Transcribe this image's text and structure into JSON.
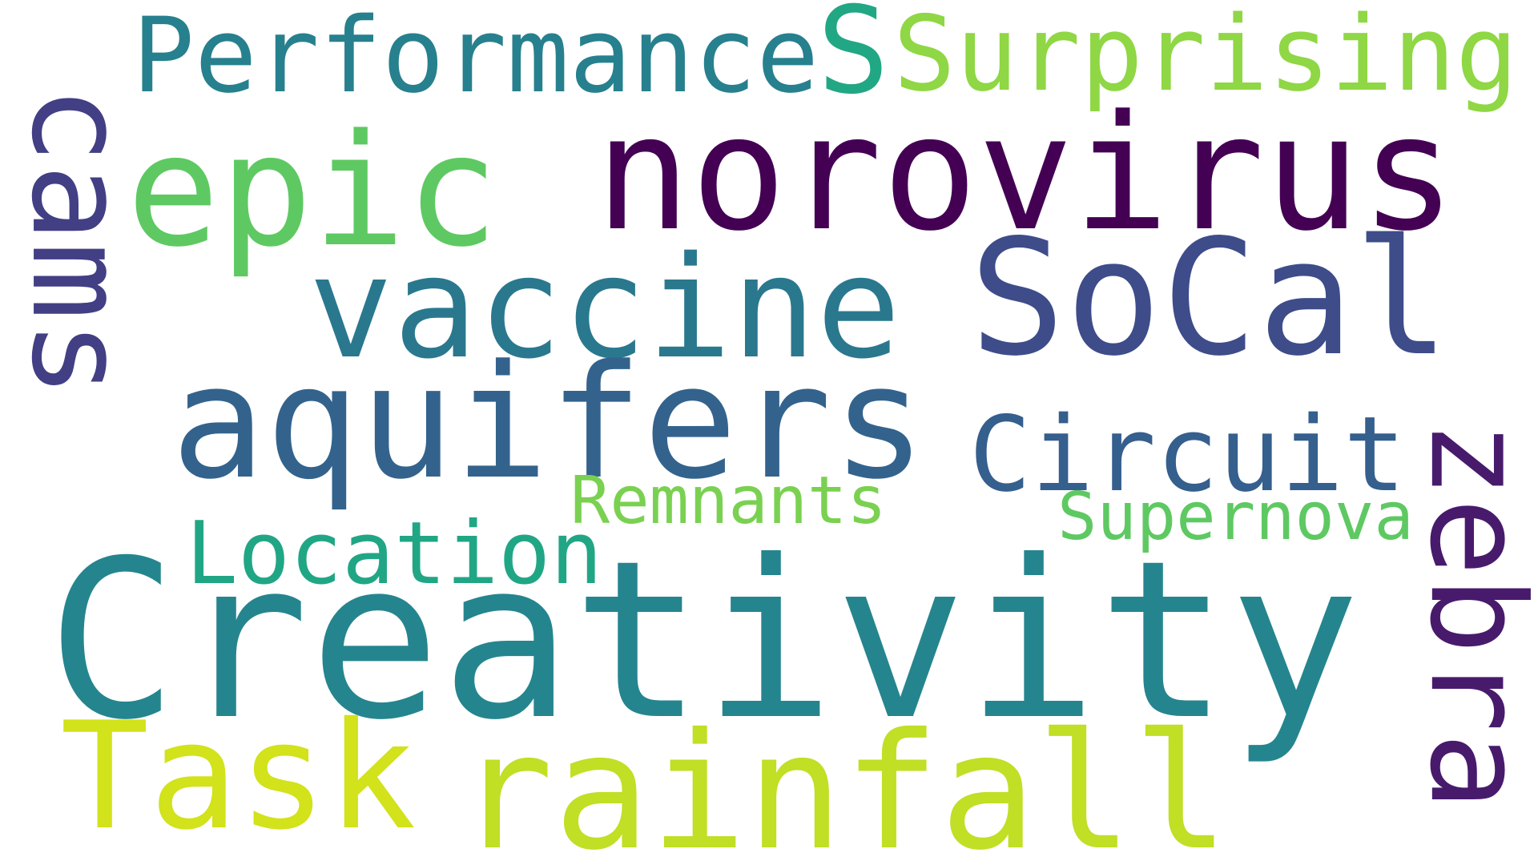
{
  "words": [
    {
      "key": "creativity",
      "text": "Creativity",
      "color": "#25858e"
    },
    {
      "key": "norovirus",
      "text": "norovirus",
      "color": "#440154"
    },
    {
      "key": "vaccine",
      "text": "vaccine",
      "color": "#2a788e"
    },
    {
      "key": "aquifers",
      "text": "aquifers",
      "color": "#33638d"
    },
    {
      "key": "rainfall",
      "text": "rainfall",
      "color": "#c0df25"
    },
    {
      "key": "socal",
      "text": "SoCal",
      "color": "#3e4c8a"
    },
    {
      "key": "epic",
      "text": "epic",
      "color": "#5ec962"
    },
    {
      "key": "zebra",
      "text": "zebra",
      "color": "#481a6c"
    },
    {
      "key": "cams",
      "text": "cams",
      "color": "#423f85"
    },
    {
      "key": "task",
      "text": "Task",
      "color": "#d2e21b"
    },
    {
      "key": "circuit",
      "text": "Circuit",
      "color": "#355f8d"
    },
    {
      "key": "performance",
      "text": "Performance",
      "color": "#27808e"
    },
    {
      "key": "surprising",
      "text": "Surprising",
      "color": "#8fd744"
    },
    {
      "key": "s",
      "text": "S",
      "color": "#22a785"
    },
    {
      "key": "location",
      "text": "Location",
      "color": "#21a685"
    },
    {
      "key": "remnants",
      "text": "Remnants",
      "color": "#7ad151"
    },
    {
      "key": "supernova",
      "text": "Supernova",
      "color": "#5ec962"
    }
  ]
}
